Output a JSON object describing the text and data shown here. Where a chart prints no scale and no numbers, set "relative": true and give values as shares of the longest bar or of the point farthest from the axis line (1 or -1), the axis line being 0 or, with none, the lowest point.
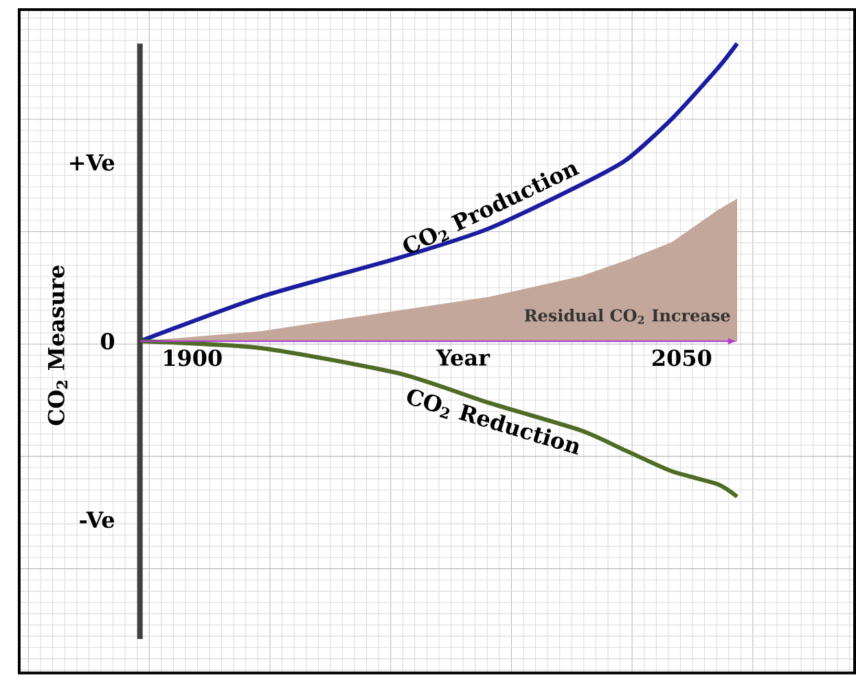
{
  "chart_data": {
    "type": "line",
    "relative": true,
    "xlabel": "Year",
    "ylabel": "CO$_{2}$ Measure",
    "x": [
      1884,
      1921,
      1963,
      1991,
      2019,
      2033,
      2047,
      2061,
      2067
    ],
    "xlim": [
      1847,
      2103
    ],
    "xticks": [
      1900,
      2050
    ],
    "grid": true,
    "series": [
      {
        "name": "CO$_{2}$ Production",
        "color": "#1c1ca0",
        "values": [
          0,
          0.149,
          0.279,
          0.379,
          0.525,
          0.609,
          0.747,
          0.916,
          1
        ]
      },
      {
        "name": "Residual CO$_{2}$ Increase",
        "type": "area",
        "color": "#c4a79b",
        "values": [
          0,
          0.034,
          0.103,
          0.149,
          0.218,
          0.272,
          0.333,
          0.44,
          0.479
        ]
      },
      {
        "name": "CO$_{2}$ Reduction",
        "color": "#4f6b25",
        "values": [
          0,
          -0.023,
          -0.107,
          -0.207,
          -0.299,
          -0.368,
          -0.437,
          -0.48,
          -0.522
        ]
      }
    ],
    "ref_lines": [
      {
        "axis": "x",
        "value": 1884,
        "color": "#404040"
      }
    ],
    "annotations": [
      "+Ve",
      "0",
      "-Ve"
    ]
  }
}
